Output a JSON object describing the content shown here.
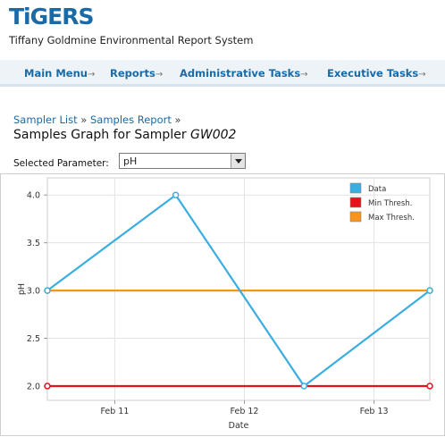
{
  "header": {
    "logo": "TiGERS",
    "subtitle": "Tiffany Goldmine Environmental Report System"
  },
  "nav": {
    "items": [
      {
        "label": "Main Menu"
      },
      {
        "label": "Reports"
      },
      {
        "label": "Administrative Tasks"
      },
      {
        "label": "Executive Tasks"
      }
    ],
    "arrow": "→"
  },
  "breadcrumb": {
    "items": [
      "Sampler List",
      "Samples Report"
    ],
    "separator": "»"
  },
  "page_title": {
    "prefix": "Samples Graph for Sampler",
    "sampler": "GW002"
  },
  "parameter": {
    "label": "Selected Parameter:",
    "selected": "pH"
  },
  "colors": {
    "data": "#3aaee0",
    "min_thresh": "#e8111b",
    "max_thresh": "#f7941d",
    "grid": "#e3e3e3"
  },
  "chart_data": {
    "type": "line",
    "xlabel": "Date",
    "ylabel": "pH",
    "ylim": [
      1.85,
      4.18
    ],
    "yticks": [
      "2.0",
      "2.5",
      "3.0",
      "3.5",
      "4.0"
    ],
    "xlim": [
      10.48,
      13.43
    ],
    "xticks": [
      {
        "label": "Feb 11",
        "x": 11.0
      },
      {
        "label": "Feb 12",
        "x": 12.0
      },
      {
        "label": "Feb 13",
        "x": 13.0
      }
    ],
    "grid": true,
    "legend": "top-right",
    "series": [
      {
        "name": "Data",
        "color": "#3aaee0",
        "x": [
          10.48,
          11.47,
          12.46,
          13.43
        ],
        "values": [
          3.0,
          4.0,
          2.0,
          3.0
        ]
      },
      {
        "name": "Min Thresh.",
        "color": "#e8111b",
        "x": [
          10.48,
          13.43
        ],
        "values": [
          2.0,
          2.0
        ]
      },
      {
        "name": "Max Thresh.",
        "color": "#f7941d",
        "x": [
          10.48,
          13.43
        ],
        "values": [
          3.0,
          3.0
        ]
      }
    ]
  }
}
